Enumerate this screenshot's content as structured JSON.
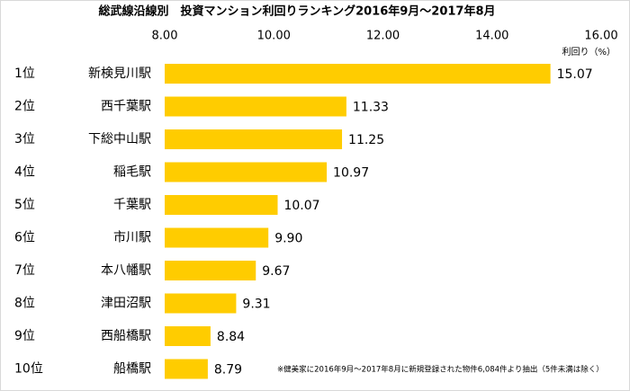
{
  "chart_data": {
    "type": "bar",
    "orientation": "horizontal",
    "title": "総武線沿線別　投資マンション利回りランキング2016年9月～2017年8月",
    "x_axis_label": "利回り（%）",
    "ranks": [
      "1位",
      "2位",
      "3位",
      "4位",
      "5位",
      "6位",
      "7位",
      "8位",
      "9位",
      "10位"
    ],
    "categories": [
      "新検見川駅",
      "西千葉駅",
      "下総中山駅",
      "稲毛駅",
      "千葉駅",
      "市川駅",
      "本八幡駅",
      "津田沼駅",
      "西船橋駅",
      "船橋駅"
    ],
    "values": [
      15.07,
      11.33,
      11.25,
      10.97,
      10.07,
      9.9,
      9.67,
      9.31,
      8.84,
      8.79
    ],
    "value_labels": [
      "15.07",
      "11.33",
      "11.25",
      "10.97",
      "10.07",
      "9.90",
      "9.67",
      "9.31",
      "8.84",
      "8.79"
    ],
    "color": "#ffcc00",
    "xlim": [
      8,
      16
    ],
    "xticks": [
      {
        "value": 8,
        "label": "8.00"
      },
      {
        "value": 10,
        "label": "10.00"
      },
      {
        "value": 12,
        "label": "12.00"
      },
      {
        "value": 14,
        "label": "14.00"
      },
      {
        "value": 16,
        "label": "16.00"
      }
    ],
    "grid": false,
    "note": "※健美家に2016年9月～2017年8月に新規登録された物件6,084件より抽出（5件未満は除く）"
  }
}
